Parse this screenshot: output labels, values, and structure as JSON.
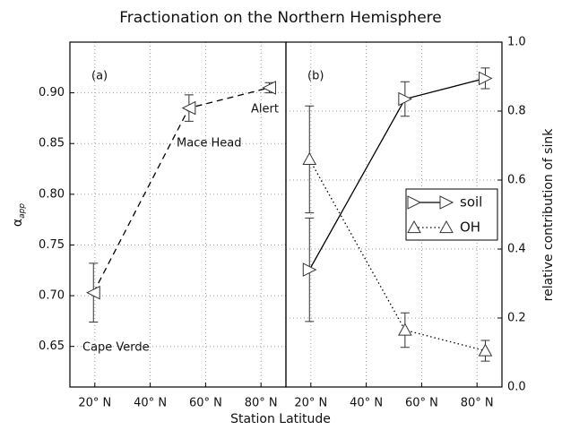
{
  "title": "Fractionation on the Northern Hemisphere",
  "xlabel": "Station Latitude",
  "chart_data": [
    {
      "type": "line",
      "panel_label": "(a)",
      "ylabel": "α",
      "ylabel_subscript": "app",
      "x": [
        19.5,
        54,
        83
      ],
      "xlim": [
        11,
        89
      ],
      "xticks": [
        {
          "value": 20,
          "label": "20° N"
        },
        {
          "value": 40,
          "label": "40° N"
        },
        {
          "value": 60,
          "label": "60° N"
        },
        {
          "value": 80,
          "label": "80° N"
        }
      ],
      "ylim": [
        0.61,
        0.95
      ],
      "yticks": [
        0.65,
        {
          "value": 0.7,
          "label": "0.70"
        },
        0.75,
        {
          "value": 0.8,
          "label": "0.80"
        },
        0.85,
        {
          "value": 0.9,
          "label": "0.90"
        }
      ],
      "grid": true,
      "series": [
        {
          "color": "#000000",
          "marker": "left",
          "linestyle": "dashed",
          "values": [
            0.703,
            0.885,
            0.905
          ],
          "errors": [
            0.029,
            0.013,
            0.005
          ]
        }
      ],
      "annotations": [
        "Cape Verde",
        "Mace Head",
        "Alert"
      ]
    },
    {
      "type": "line",
      "panel_label": "(b)",
      "y2label": "relative contribution of sink",
      "x": [
        19.5,
        54,
        83
      ],
      "xlim": [
        11,
        89
      ],
      "xticks": [
        {
          "value": 20,
          "label": "20° N"
        },
        {
          "value": 40,
          "label": "40° N"
        },
        {
          "value": 60,
          "label": "60° N"
        },
        {
          "value": 80,
          "label": "80° N"
        }
      ],
      "y2lim": [
        0,
        1
      ],
      "y2ticks": [
        {
          "value": 0,
          "label": "0.0"
        },
        0.2,
        0.4,
        0.6,
        0.8,
        {
          "value": 1,
          "label": "1.0"
        }
      ],
      "grid": true,
      "legend": "right",
      "series": [
        {
          "name": "soil",
          "axis": "y2",
          "color": "#000000",
          "marker": "right",
          "linestyle": "solid",
          "values": [
            0.34,
            0.835,
            0.895
          ],
          "errors": [
            0.15,
            0.05,
            0.03
          ]
        },
        {
          "name": "OH",
          "axis": "y2",
          "color": "#000000",
          "marker": "up",
          "linestyle": "dotted",
          "values": [
            0.66,
            0.165,
            0.105
          ],
          "errors": [
            0.155,
            0.05,
            0.03
          ]
        }
      ]
    }
  ]
}
